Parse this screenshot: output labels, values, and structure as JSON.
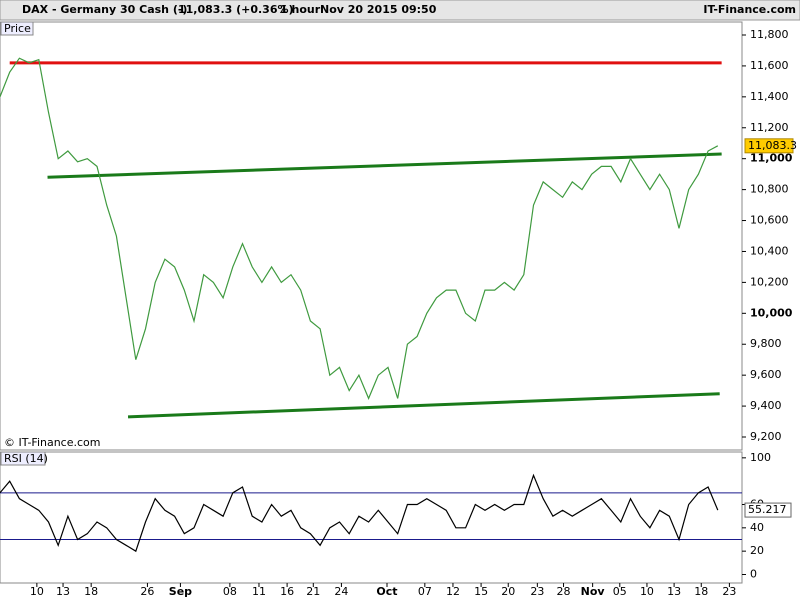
{
  "header": {
    "title": "DAX - Germany 30 Cash (-)",
    "quote": "11,083.3 (+0.36%)",
    "interval": "1 hour",
    "timestamp": "Nov 20 2015 09:50",
    "brand": "IT-Finance.com"
  },
  "chart_data": [
    {
      "type": "line",
      "panel_label": "Price",
      "watermark": "© IT-Finance.com",
      "x": [
        0,
        1,
        2,
        3,
        4,
        5,
        6,
        7,
        8,
        9,
        10,
        11,
        12,
        13,
        14,
        15,
        16,
        17,
        18,
        19,
        20,
        21,
        22,
        23,
        24,
        25,
        26,
        27,
        28,
        29,
        30,
        31,
        32,
        33,
        34,
        35,
        36,
        37,
        38,
        39,
        40,
        41,
        42,
        43,
        44,
        45,
        46,
        47,
        48,
        49,
        50,
        51,
        52,
        53,
        54,
        55,
        56,
        57,
        58,
        59,
        60,
        61,
        62,
        63,
        64,
        65,
        66,
        67,
        68,
        69,
        70,
        71,
        72,
        73,
        74
      ],
      "series": [
        {
          "color": "#3f9a3f",
          "values": [
            11400,
            11560,
            11650,
            11620,
            11640,
            11300,
            11000,
            11050,
            10980,
            11000,
            10950,
            10700,
            10500,
            10100,
            9700,
            9900,
            10200,
            10350,
            10300,
            10150,
            9950,
            10250,
            10200,
            10100,
            10300,
            10450,
            10300,
            10200,
            10300,
            10200,
            10250,
            10150,
            9950,
            9900,
            9600,
            9650,
            9500,
            9600,
            9450,
            9600,
            9650,
            9450,
            9800,
            9850,
            10000,
            10100,
            10150,
            10150,
            10000,
            9950,
            10150,
            10150,
            10200,
            10150,
            10250,
            10700,
            10850,
            10800,
            10750,
            10850,
            10800,
            10900,
            10950,
            10950,
            10850,
            11000,
            10900,
            10800,
            10900,
            10800,
            10550,
            10800,
            10900,
            11050,
            11083.3
          ]
        }
      ],
      "last_price": {
        "value": 11083.3,
        "label": "11,083.3"
      },
      "trendlines": [
        {
          "color": "#e01010",
          "x": [
            1,
            74.4
          ],
          "y": [
            11620,
            11620
          ]
        },
        {
          "color": "#1a7a1a",
          "x": [
            4.9,
            74.4
          ],
          "y": [
            10880,
            11030
          ]
        },
        {
          "color": "#1a7a1a",
          "x": [
            13.2,
            74.2
          ],
          "y": [
            9330,
            9480
          ]
        }
      ],
      "xlim": [
        0,
        76.5
      ],
      "ylim": [
        9116,
        11884
      ],
      "yticks": [
        {
          "value": 9200,
          "label": "9,200"
        },
        {
          "value": 9400,
          "label": "9,400"
        },
        {
          "value": 9600,
          "label": "9,600"
        },
        {
          "value": 9800,
          "label": "9,800"
        },
        {
          "value": 10000,
          "label": "10,000"
        },
        {
          "value": 10200,
          "label": "10,200"
        },
        {
          "value": 10400,
          "label": "10,400"
        },
        {
          "value": 10600,
          "label": "10,600"
        },
        {
          "value": 10800,
          "label": "10,800"
        },
        {
          "value": 11000,
          "label": "11,000"
        },
        {
          "value": 11200,
          "label": "11,200"
        },
        {
          "value": 11400,
          "label": "11,400"
        },
        {
          "value": 11600,
          "label": "11,600"
        },
        {
          "value": 11800,
          "label": "11,800"
        }
      ]
    },
    {
      "type": "line",
      "panel_label": "RSI (14)",
      "x": [
        0,
        1,
        2,
        3,
        4,
        5,
        6,
        7,
        8,
        9,
        10,
        11,
        12,
        13,
        14,
        15,
        16,
        17,
        18,
        19,
        20,
        21,
        22,
        23,
        24,
        25,
        26,
        27,
        28,
        29,
        30,
        31,
        32,
        33,
        34,
        35,
        36,
        37,
        38,
        39,
        40,
        41,
        42,
        43,
        44,
        45,
        46,
        47,
        48,
        49,
        50,
        51,
        52,
        53,
        54,
        55,
        56,
        57,
        58,
        59,
        60,
        61,
        62,
        63,
        64,
        65,
        66,
        67,
        68,
        69,
        70,
        71,
        72,
        73,
        74
      ],
      "series": [
        {
          "color": "#000000",
          "values": [
            70,
            80,
            65,
            60,
            55,
            45,
            25,
            50,
            30,
            35,
            45,
            40,
            30,
            25,
            20,
            45,
            65,
            55,
            50,
            35,
            40,
            60,
            55,
            50,
            70,
            75,
            50,
            45,
            60,
            50,
            55,
            40,
            35,
            25,
            40,
            45,
            35,
            50,
            45,
            55,
            45,
            35,
            60,
            60,
            65,
            60,
            55,
            40,
            40,
            60,
            55,
            60,
            55,
            60,
            60,
            85,
            65,
            50,
            55,
            50,
            55,
            60,
            65,
            55,
            45,
            65,
            50,
            40,
            55,
            50,
            30,
            60,
            70,
            75,
            55.217
          ]
        }
      ],
      "last_value": 55.217,
      "levels": [
        70,
        30
      ],
      "level_color": "#1a1a8c",
      "xlim": [
        0,
        76.5
      ],
      "ylim": [
        -7.3,
        105
      ],
      "yticks": [
        0,
        20,
        40,
        60,
        100
      ],
      "xticks": [
        {
          "value": 3.8,
          "label": "10"
        },
        {
          "value": 6.5,
          "label": "13"
        },
        {
          "value": 9.4,
          "label": "18"
        },
        {
          "value": 15.2,
          "label": "26"
        },
        {
          "value": 18.6,
          "label": "Sep"
        },
        {
          "value": 23.7,
          "label": "08"
        },
        {
          "value": 26.7,
          "label": "11"
        },
        {
          "value": 29.6,
          "label": "16"
        },
        {
          "value": 32.3,
          "label": "21"
        },
        {
          "value": 35.2,
          "label": "24"
        },
        {
          "value": 39.9,
          "label": "Oct"
        },
        {
          "value": 43.8,
          "label": "07"
        },
        {
          "value": 46.7,
          "label": "12"
        },
        {
          "value": 49.6,
          "label": "15"
        },
        {
          "value": 52.4,
          "label": "20"
        },
        {
          "value": 55.4,
          "label": "23"
        },
        {
          "value": 58.1,
          "label": "28"
        },
        {
          "value": 61.1,
          "label": "Nov"
        },
        {
          "value": 63.9,
          "label": "05"
        },
        {
          "value": 66.7,
          "label": "10"
        },
        {
          "value": 69.5,
          "label": "13"
        },
        {
          "value": 72.3,
          "label": "18"
        },
        {
          "value": 75.2,
          "label": "23"
        }
      ]
    }
  ]
}
